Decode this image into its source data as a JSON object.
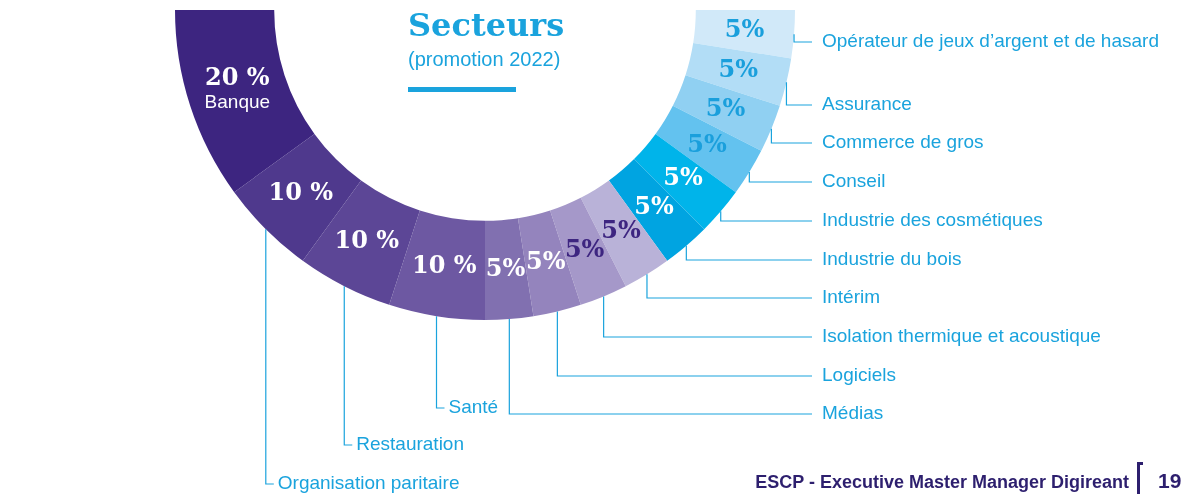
{
  "chart_data": {
    "type": "donut",
    "title": "Secteurs",
    "subtitle": "(promotion 2022)",
    "categories": [
      "Opérateur de jeux d’argent et de hasard",
      "Assurance",
      "Commerce de gros",
      "Conseil",
      "Industrie des cosmétiques",
      "Industrie du bois",
      "Intérim",
      "Isolation thermique et acoustique",
      "Logiciels",
      "Médias",
      "Santé",
      "Restauration",
      "Organisation paritaire",
      "Banque"
    ],
    "values": [
      5,
      5,
      5,
      5,
      5,
      5,
      5,
      5,
      5,
      5,
      10,
      10,
      10,
      20
    ],
    "value_labels": [
      "5%",
      "5%",
      "5%",
      "5%",
      "5%",
      "5%",
      "5%",
      "5%",
      "5%",
      "5%",
      "10 %",
      "10 %",
      "10 %",
      "20 %"
    ],
    "colors": [
      "#d1e9f9",
      "#b2ddf6",
      "#90d0f2",
      "#63c2ef",
      "#00b4ea",
      "#00a4e1",
      "#b9b2d8",
      "#a598c9",
      "#9484bd",
      "#8170b0",
      "#6d58a2",
      "#5c4696",
      "#4f398d",
      "#3d2580"
    ],
    "legend": false,
    "annotations": [
      "ESCP - Executive Master Manager Digireant",
      "19"
    ]
  }
}
